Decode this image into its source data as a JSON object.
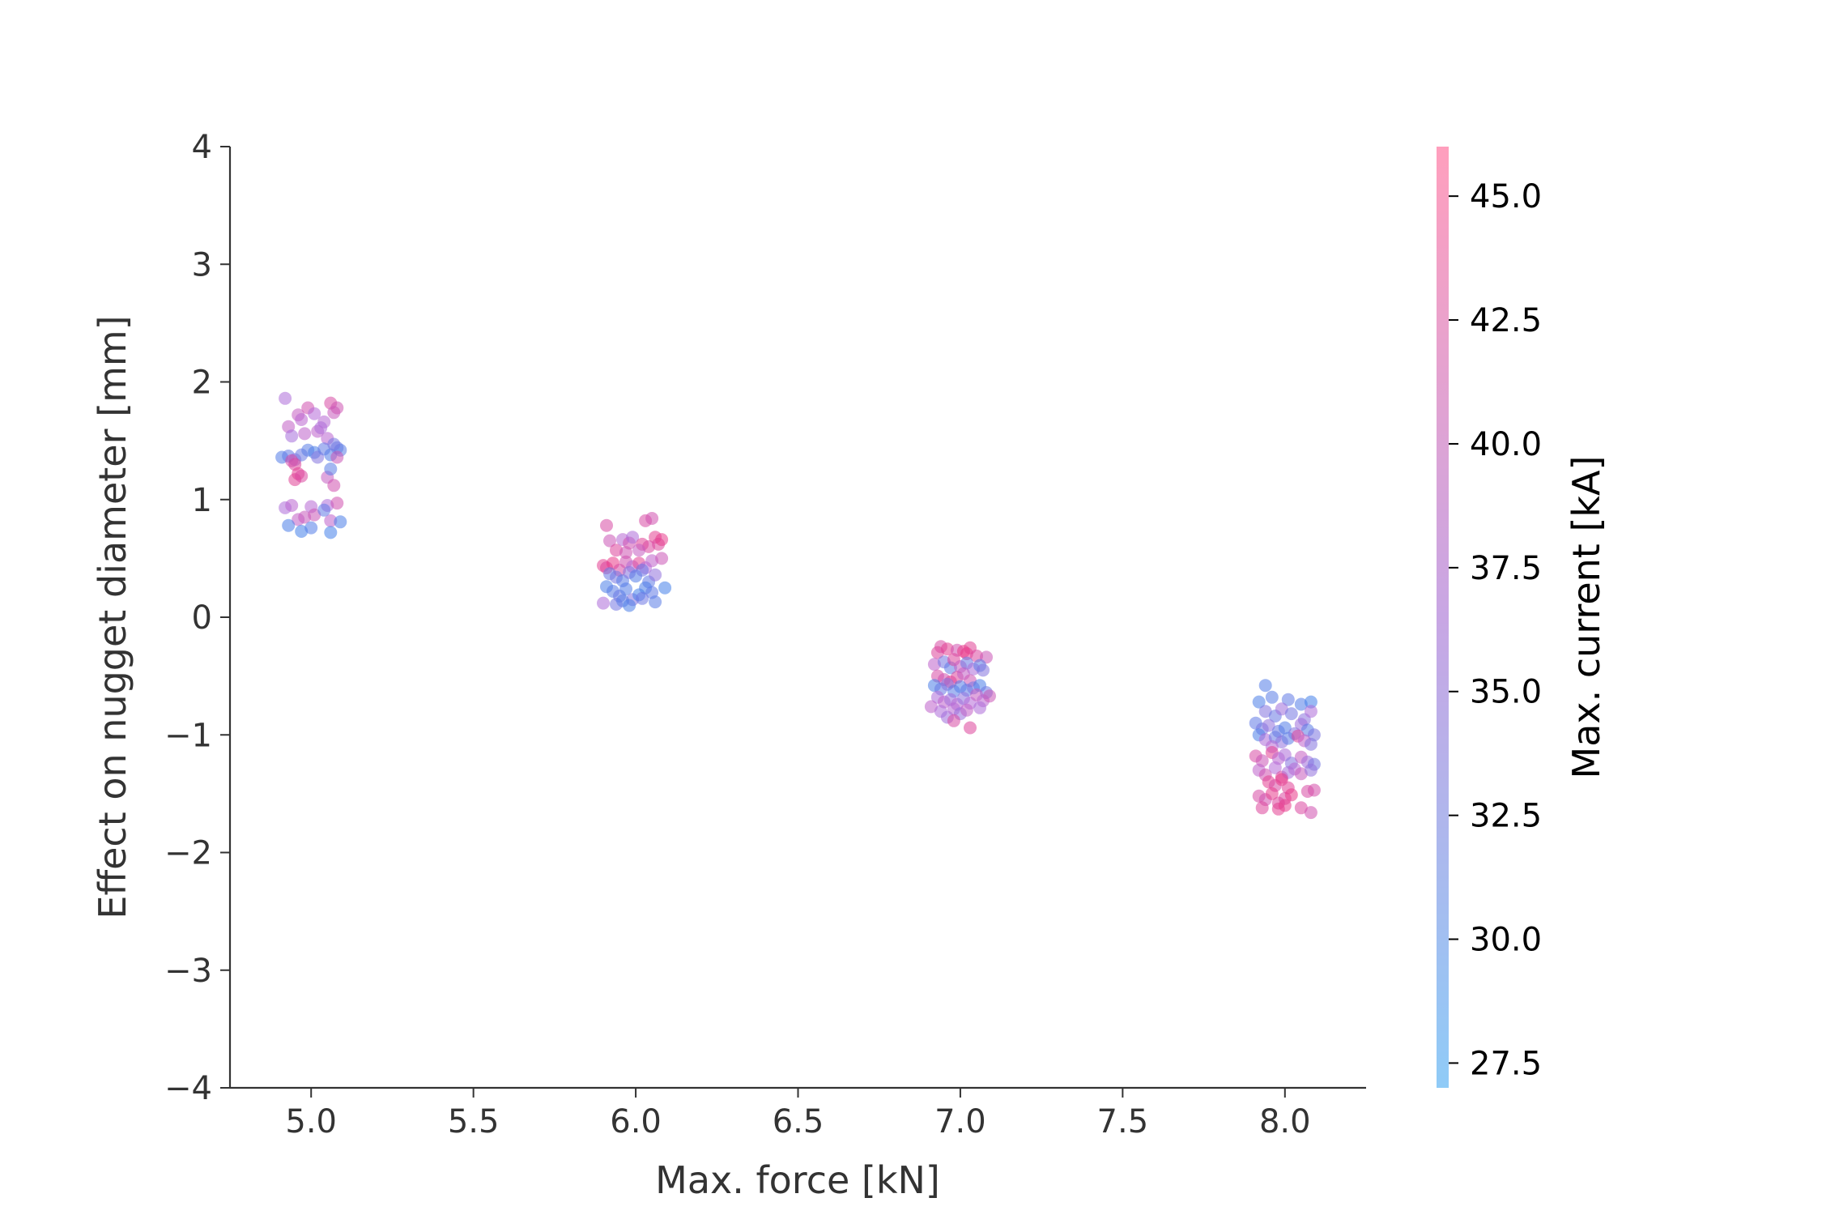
{
  "chart_data": {
    "type": "scatter",
    "title": "",
    "xlabel": "Max. force [kN]",
    "ylabel": "Effect on nugget diameter [mm]",
    "xlim": [
      4.75,
      8.25
    ],
    "ylim": [
      -4,
      4
    ],
    "x_ticks": [
      5.0,
      5.5,
      6.0,
      6.5,
      7.0,
      7.5,
      8.0
    ],
    "x_tick_labels": [
      "5.0",
      "5.5",
      "6.0",
      "6.5",
      "7.0",
      "7.5",
      "8.0"
    ],
    "y_ticks": [
      -4,
      -3,
      -2,
      -1,
      0,
      1,
      2,
      3,
      4
    ],
    "y_tick_labels": [
      "−4",
      "−3",
      "−2",
      "−1",
      "0",
      "1",
      "2",
      "3",
      "4"
    ],
    "grid": false,
    "colorbar": {
      "label": "Max. current [kA]",
      "range": [
        27.0,
        46.0
      ],
      "ticks": [
        27.5,
        30.0,
        32.5,
        35.0,
        37.5,
        40.0,
        42.5,
        45.0
      ],
      "tick_labels": [
        "27.5",
        "30.0",
        "32.5",
        "35.0",
        "37.5",
        "40.0",
        "42.5",
        "45.0"
      ],
      "color_low": "#8fcbf7",
      "color_mid": "#c8a6e4",
      "color_high": "#ff9fbd"
    },
    "marker_colors": {
      "low": "#2f83ec",
      "mid": "#b46ad8",
      "high": "#f0337f"
    },
    "marker_opacity": 0.55,
    "points": [
      {
        "x": 4.92,
        "y": 1.86,
        "c": 36.0
      },
      {
        "x": 4.93,
        "y": 1.62,
        "c": 38.5
      },
      {
        "x": 4.94,
        "y": 1.54,
        "c": 35.5
      },
      {
        "x": 4.96,
        "y": 1.72,
        "c": 39.0
      },
      {
        "x": 4.97,
        "y": 1.68,
        "c": 37.5
      },
      {
        "x": 4.99,
        "y": 1.78,
        "c": 41.0
      },
      {
        "x": 5.01,
        "y": 1.73,
        "c": 36.5
      },
      {
        "x": 5.02,
        "y": 1.58,
        "c": 38.0
      },
      {
        "x": 5.04,
        "y": 1.66,
        "c": 37.0
      },
      {
        "x": 5.06,
        "y": 1.82,
        "c": 42.0
      },
      {
        "x": 5.07,
        "y": 1.74,
        "c": 39.5
      },
      {
        "x": 5.08,
        "y": 1.78,
        "c": 40.5
      },
      {
        "x": 5.05,
        "y": 1.52,
        "c": 37.5
      },
      {
        "x": 4.98,
        "y": 1.56,
        "c": 38.0
      },
      {
        "x": 5.03,
        "y": 1.61,
        "c": 36.0
      },
      {
        "x": 4.91,
        "y": 1.36,
        "c": 29.5
      },
      {
        "x": 4.93,
        "y": 1.37,
        "c": 30.5
      },
      {
        "x": 4.95,
        "y": 1.34,
        "c": 34.0
      },
      {
        "x": 4.97,
        "y": 1.38,
        "c": 31.0
      },
      {
        "x": 4.99,
        "y": 1.42,
        "c": 30.0
      },
      {
        "x": 5.01,
        "y": 1.4,
        "c": 29.0
      },
      {
        "x": 5.02,
        "y": 1.36,
        "c": 33.0
      },
      {
        "x": 5.04,
        "y": 1.43,
        "c": 30.5
      },
      {
        "x": 5.06,
        "y": 1.38,
        "c": 29.5
      },
      {
        "x": 5.08,
        "y": 1.44,
        "c": 31.0
      },
      {
        "x": 5.09,
        "y": 1.42,
        "c": 30.0
      },
      {
        "x": 5.07,
        "y": 1.47,
        "c": 32.0
      },
      {
        "x": 4.95,
        "y": 1.3,
        "c": 43.0
      },
      {
        "x": 4.96,
        "y": 1.22,
        "c": 44.0
      },
      {
        "x": 4.95,
        "y": 1.17,
        "c": 43.5
      },
      {
        "x": 4.97,
        "y": 1.2,
        "c": 42.5
      },
      {
        "x": 4.94,
        "y": 1.33,
        "c": 41.5
      },
      {
        "x": 5.05,
        "y": 1.19,
        "c": 39.0
      },
      {
        "x": 5.07,
        "y": 1.12,
        "c": 41.0
      },
      {
        "x": 5.06,
        "y": 1.26,
        "c": 30.0
      },
      {
        "x": 5.08,
        "y": 1.36,
        "c": 40.0
      },
      {
        "x": 4.92,
        "y": 0.93,
        "c": 36.0
      },
      {
        "x": 4.94,
        "y": 0.95,
        "c": 37.5
      },
      {
        "x": 4.96,
        "y": 0.83,
        "c": 38.5
      },
      {
        "x": 4.98,
        "y": 0.85,
        "c": 39.5
      },
      {
        "x": 5.0,
        "y": 0.94,
        "c": 37.0
      },
      {
        "x": 5.01,
        "y": 0.87,
        "c": 40.0
      },
      {
        "x": 5.05,
        "y": 0.95,
        "c": 36.0
      },
      {
        "x": 5.06,
        "y": 0.82,
        "c": 38.0
      },
      {
        "x": 5.08,
        "y": 0.97,
        "c": 41.0
      },
      {
        "x": 4.93,
        "y": 0.78,
        "c": 29.0
      },
      {
        "x": 4.97,
        "y": 0.73,
        "c": 28.5
      },
      {
        "x": 5.0,
        "y": 0.76,
        "c": 29.5
      },
      {
        "x": 5.06,
        "y": 0.72,
        "c": 28.5
      },
      {
        "x": 5.09,
        "y": 0.81,
        "c": 29.0
      },
      {
        "x": 5.04,
        "y": 0.91,
        "c": 30.5
      },
      {
        "x": 5.91,
        "y": 0.78,
        "c": 42.0
      },
      {
        "x": 5.92,
        "y": 0.65,
        "c": 40.0
      },
      {
        "x": 5.94,
        "y": 0.57,
        "c": 43.0
      },
      {
        "x": 5.96,
        "y": 0.66,
        "c": 37.0
      },
      {
        "x": 5.98,
        "y": 0.63,
        "c": 41.0
      },
      {
        "x": 5.99,
        "y": 0.68,
        "c": 36.0
      },
      {
        "x": 6.02,
        "y": 0.62,
        "c": 43.5
      },
      {
        "x": 6.03,
        "y": 0.82,
        "c": 42.0
      },
      {
        "x": 6.05,
        "y": 0.84,
        "c": 41.0
      },
      {
        "x": 6.06,
        "y": 0.68,
        "c": 44.0
      },
      {
        "x": 6.07,
        "y": 0.62,
        "c": 43.0
      },
      {
        "x": 6.08,
        "y": 0.66,
        "c": 44.5
      },
      {
        "x": 6.04,
        "y": 0.6,
        "c": 42.5
      },
      {
        "x": 5.97,
        "y": 0.55,
        "c": 40.5
      },
      {
        "x": 6.01,
        "y": 0.57,
        "c": 39.0
      },
      {
        "x": 5.9,
        "y": 0.44,
        "c": 44.0
      },
      {
        "x": 5.91,
        "y": 0.42,
        "c": 43.0
      },
      {
        "x": 5.93,
        "y": 0.46,
        "c": 45.0
      },
      {
        "x": 5.95,
        "y": 0.4,
        "c": 42.0
      },
      {
        "x": 5.97,
        "y": 0.47,
        "c": 41.0
      },
      {
        "x": 5.99,
        "y": 0.43,
        "c": 37.0
      },
      {
        "x": 6.01,
        "y": 0.46,
        "c": 44.0
      },
      {
        "x": 6.03,
        "y": 0.42,
        "c": 36.5
      },
      {
        "x": 6.05,
        "y": 0.48,
        "c": 38.0
      },
      {
        "x": 6.08,
        "y": 0.5,
        "c": 40.0
      },
      {
        "x": 5.92,
        "y": 0.37,
        "c": 31.0
      },
      {
        "x": 5.94,
        "y": 0.34,
        "c": 32.0
      },
      {
        "x": 5.96,
        "y": 0.31,
        "c": 30.0
      },
      {
        "x": 5.98,
        "y": 0.38,
        "c": 33.0
      },
      {
        "x": 6.0,
        "y": 0.35,
        "c": 29.5
      },
      {
        "x": 6.02,
        "y": 0.4,
        "c": 31.5
      },
      {
        "x": 6.04,
        "y": 0.3,
        "c": 30.5
      },
      {
        "x": 6.06,
        "y": 0.36,
        "c": 34.0
      },
      {
        "x": 5.91,
        "y": 0.26,
        "c": 29.0
      },
      {
        "x": 5.93,
        "y": 0.22,
        "c": 30.0
      },
      {
        "x": 5.95,
        "y": 0.18,
        "c": 31.0
      },
      {
        "x": 5.97,
        "y": 0.24,
        "c": 29.5
      },
      {
        "x": 5.99,
        "y": 0.15,
        "c": 33.0
      },
      {
        "x": 6.01,
        "y": 0.19,
        "c": 28.5
      },
      {
        "x": 6.03,
        "y": 0.25,
        "c": 29.0
      },
      {
        "x": 6.05,
        "y": 0.21,
        "c": 30.5
      },
      {
        "x": 6.09,
        "y": 0.25,
        "c": 28.5
      },
      {
        "x": 5.9,
        "y": 0.12,
        "c": 36.0
      },
      {
        "x": 5.94,
        "y": 0.11,
        "c": 32.0
      },
      {
        "x": 5.96,
        "y": 0.14,
        "c": 30.0
      },
      {
        "x": 5.98,
        "y": 0.1,
        "c": 29.0
      },
      {
        "x": 6.02,
        "y": 0.16,
        "c": 31.5
      },
      {
        "x": 6.06,
        "y": 0.13,
        "c": 30.0
      },
      {
        "x": 6.94,
        "y": -0.25,
        "c": 42.0
      },
      {
        "x": 6.96,
        "y": -0.27,
        "c": 44.0
      },
      {
        "x": 6.93,
        "y": -0.3,
        "c": 43.0
      },
      {
        "x": 6.99,
        "y": -0.28,
        "c": 41.0
      },
      {
        "x": 7.02,
        "y": -0.31,
        "c": 44.5
      },
      {
        "x": 7.03,
        "y": -0.26,
        "c": 43.5
      },
      {
        "x": 7.05,
        "y": -0.33,
        "c": 42.5
      },
      {
        "x": 7.08,
        "y": -0.34,
        "c": 40.0
      },
      {
        "x": 7.01,
        "y": -0.29,
        "c": 45.0
      },
      {
        "x": 6.92,
        "y": -0.4,
        "c": 38.0
      },
      {
        "x": 6.95,
        "y": -0.38,
        "c": 32.0
      },
      {
        "x": 6.97,
        "y": -0.43,
        "c": 30.5
      },
      {
        "x": 6.98,
        "y": -0.36,
        "c": 43.0
      },
      {
        "x": 7.0,
        "y": -0.42,
        "c": 39.0
      },
      {
        "x": 7.02,
        "y": -0.39,
        "c": 31.0
      },
      {
        "x": 7.04,
        "y": -0.44,
        "c": 36.0
      },
      {
        "x": 7.06,
        "y": -0.41,
        "c": 30.0
      },
      {
        "x": 7.07,
        "y": -0.45,
        "c": 33.0
      },
      {
        "x": 6.93,
        "y": -0.5,
        "c": 42.0
      },
      {
        "x": 6.95,
        "y": -0.53,
        "c": 41.0
      },
      {
        "x": 6.97,
        "y": -0.55,
        "c": 44.0
      },
      {
        "x": 6.99,
        "y": -0.51,
        "c": 43.0
      },
      {
        "x": 7.01,
        "y": -0.48,
        "c": 38.5
      },
      {
        "x": 7.03,
        "y": -0.54,
        "c": 40.5
      },
      {
        "x": 6.92,
        "y": -0.58,
        "c": 29.0
      },
      {
        "x": 6.94,
        "y": -0.61,
        "c": 31.0
      },
      {
        "x": 6.96,
        "y": -0.57,
        "c": 33.0
      },
      {
        "x": 6.98,
        "y": -0.63,
        "c": 30.0
      },
      {
        "x": 7.0,
        "y": -0.59,
        "c": 29.5
      },
      {
        "x": 7.02,
        "y": -0.62,
        "c": 30.5
      },
      {
        "x": 7.04,
        "y": -0.6,
        "c": 32.0
      },
      {
        "x": 7.06,
        "y": -0.58,
        "c": 29.0
      },
      {
        "x": 7.08,
        "y": -0.64,
        "c": 31.5
      },
      {
        "x": 6.93,
        "y": -0.68,
        "c": 36.0
      },
      {
        "x": 6.95,
        "y": -0.72,
        "c": 38.0
      },
      {
        "x": 6.97,
        "y": -0.7,
        "c": 35.0
      },
      {
        "x": 6.99,
        "y": -0.74,
        "c": 37.0
      },
      {
        "x": 7.01,
        "y": -0.69,
        "c": 34.0
      },
      {
        "x": 7.03,
        "y": -0.73,
        "c": 36.5
      },
      {
        "x": 7.05,
        "y": -0.66,
        "c": 39.0
      },
      {
        "x": 7.07,
        "y": -0.71,
        "c": 37.5
      },
      {
        "x": 7.09,
        "y": -0.67,
        "c": 40.0
      },
      {
        "x": 6.91,
        "y": -0.76,
        "c": 38.0
      },
      {
        "x": 6.94,
        "y": -0.8,
        "c": 36.0
      },
      {
        "x": 6.96,
        "y": -0.85,
        "c": 35.0
      },
      {
        "x": 6.98,
        "y": -0.78,
        "c": 37.0
      },
      {
        "x": 7.0,
        "y": -0.82,
        "c": 34.5
      },
      {
        "x": 7.02,
        "y": -0.79,
        "c": 38.5
      },
      {
        "x": 6.98,
        "y": -0.88,
        "c": 42.0
      },
      {
        "x": 7.03,
        "y": -0.94,
        "c": 43.0
      },
      {
        "x": 7.06,
        "y": -0.77,
        "c": 36.0
      },
      {
        "x": 7.94,
        "y": -0.58,
        "c": 29.5
      },
      {
        "x": 7.96,
        "y": -0.68,
        "c": 30.0
      },
      {
        "x": 7.92,
        "y": -0.72,
        "c": 29.0
      },
      {
        "x": 8.01,
        "y": -0.7,
        "c": 30.5
      },
      {
        "x": 8.05,
        "y": -0.74,
        "c": 29.5
      },
      {
        "x": 8.08,
        "y": -0.72,
        "c": 28.5
      },
      {
        "x": 7.94,
        "y": -0.8,
        "c": 33.0
      },
      {
        "x": 7.97,
        "y": -0.84,
        "c": 31.0
      },
      {
        "x": 7.99,
        "y": -0.78,
        "c": 35.0
      },
      {
        "x": 8.02,
        "y": -0.82,
        "c": 32.0
      },
      {
        "x": 8.06,
        "y": -0.87,
        "c": 33.5
      },
      {
        "x": 8.08,
        "y": -0.8,
        "c": 36.0
      },
      {
        "x": 7.91,
        "y": -0.9,
        "c": 30.5
      },
      {
        "x": 7.93,
        "y": -0.95,
        "c": 32.0
      },
      {
        "x": 7.95,
        "y": -0.92,
        "c": 34.0
      },
      {
        "x": 7.98,
        "y": -0.97,
        "c": 31.0
      },
      {
        "x": 8.0,
        "y": -0.94,
        "c": 29.5
      },
      {
        "x": 8.03,
        "y": -0.99,
        "c": 33.0
      },
      {
        "x": 8.05,
        "y": -0.91,
        "c": 35.0
      },
      {
        "x": 8.07,
        "y": -0.96,
        "c": 30.0
      },
      {
        "x": 8.09,
        "y": -1.0,
        "c": 32.5
      },
      {
        "x": 7.92,
        "y": -1.0,
        "c": 29.0
      },
      {
        "x": 7.94,
        "y": -1.04,
        "c": 36.0
      },
      {
        "x": 7.97,
        "y": -1.02,
        "c": 31.0
      },
      {
        "x": 7.99,
        "y": -1.06,
        "c": 34.0
      },
      {
        "x": 8.01,
        "y": -1.03,
        "c": 30.0
      },
      {
        "x": 8.04,
        "y": -1.01,
        "c": 43.0
      },
      {
        "x": 8.06,
        "y": -1.05,
        "c": 38.0
      },
      {
        "x": 8.08,
        "y": -1.08,
        "c": 33.0
      },
      {
        "x": 7.96,
        "y": -1.1,
        "c": 37.0
      },
      {
        "x": 7.91,
        "y": -1.18,
        "c": 42.0
      },
      {
        "x": 7.93,
        "y": -1.22,
        "c": 40.0
      },
      {
        "x": 7.96,
        "y": -1.15,
        "c": 44.0
      },
      {
        "x": 7.98,
        "y": -1.2,
        "c": 37.5
      },
      {
        "x": 8.0,
        "y": -1.17,
        "c": 36.0
      },
      {
        "x": 8.02,
        "y": -1.24,
        "c": 33.0
      },
      {
        "x": 8.05,
        "y": -1.19,
        "c": 39.0
      },
      {
        "x": 8.07,
        "y": -1.23,
        "c": 35.0
      },
      {
        "x": 8.09,
        "y": -1.25,
        "c": 32.0
      },
      {
        "x": 7.92,
        "y": -1.3,
        "c": 38.0
      },
      {
        "x": 7.94,
        "y": -1.34,
        "c": 41.0
      },
      {
        "x": 7.97,
        "y": -1.28,
        "c": 36.5
      },
      {
        "x": 7.99,
        "y": -1.36,
        "c": 43.0
      },
      {
        "x": 8.01,
        "y": -1.32,
        "c": 35.5
      },
      {
        "x": 8.03,
        "y": -1.29,
        "c": 37.0
      },
      {
        "x": 8.05,
        "y": -1.33,
        "c": 39.5
      },
      {
        "x": 8.08,
        "y": -1.3,
        "c": 34.0
      },
      {
        "x": 7.95,
        "y": -1.4,
        "c": 44.0
      },
      {
        "x": 7.97,
        "y": -1.43,
        "c": 42.0
      },
      {
        "x": 7.99,
        "y": -1.38,
        "c": 45.0
      },
      {
        "x": 8.01,
        "y": -1.45,
        "c": 43.5
      },
      {
        "x": 7.92,
        "y": -1.52,
        "c": 42.0
      },
      {
        "x": 7.94,
        "y": -1.55,
        "c": 41.0
      },
      {
        "x": 7.96,
        "y": -1.5,
        "c": 44.5
      },
      {
        "x": 7.98,
        "y": -1.58,
        "c": 43.0
      },
      {
        "x": 8.0,
        "y": -1.54,
        "c": 42.5
      },
      {
        "x": 8.02,
        "y": -1.51,
        "c": 45.0
      },
      {
        "x": 8.07,
        "y": -1.48,
        "c": 42.0
      },
      {
        "x": 8.09,
        "y": -1.47,
        "c": 41.5
      },
      {
        "x": 7.93,
        "y": -1.62,
        "c": 43.0
      },
      {
        "x": 7.98,
        "y": -1.63,
        "c": 44.0
      },
      {
        "x": 8.05,
        "y": -1.62,
        "c": 42.5
      },
      {
        "x": 8.08,
        "y": -1.66,
        "c": 41.0
      },
      {
        "x": 8.0,
        "y": -1.6,
        "c": 44.5
      }
    ]
  }
}
